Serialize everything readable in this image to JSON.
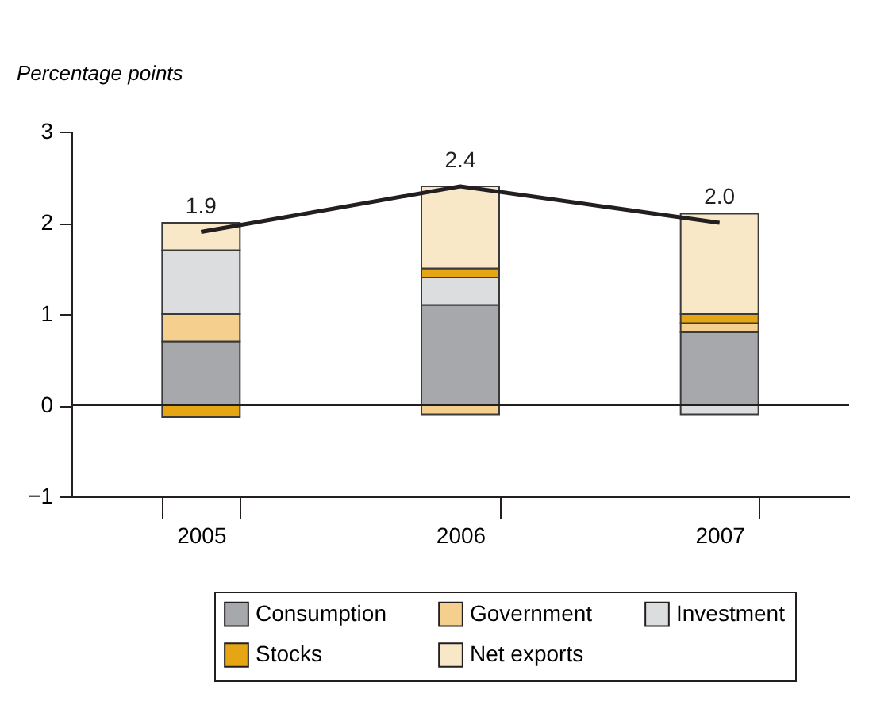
{
  "chart_data": {
    "type": "bar",
    "stacked": true,
    "ylabel": "Percentage points",
    "categories": [
      "2005",
      "2006",
      "2007"
    ],
    "series": [
      {
        "name": "Consumption",
        "color": "#a7a8ab",
        "values": [
          0.7,
          1.1,
          0.8
        ]
      },
      {
        "name": "Government",
        "color": "#f4cf8e",
        "values": [
          0.3,
          -0.1,
          0.1
        ]
      },
      {
        "name": "Investment",
        "color": "#dcdddf",
        "values": [
          0.7,
          0.3,
          -0.1
        ]
      },
      {
        "name": "Stocks",
        "color": "#e6a614",
        "values": [
          -0.13,
          0.1,
          0.1
        ]
      },
      {
        "name": "Net exports",
        "color": "#f9e8c8",
        "values": [
          0.3,
          0.9,
          1.1
        ]
      },
      {
        "type": "line",
        "color": "#231f20",
        "values": [
          1.9,
          2.4,
          2.0
        ],
        "value_labels": [
          "1.9",
          "2.4",
          "2.0"
        ]
      }
    ],
    "ylim": [
      -1,
      3
    ],
    "yticks": [
      {
        "value": -1,
        "label": "−1"
      },
      0,
      1,
      2,
      3
    ],
    "ref_lines": [
      {
        "axis": "y",
        "value": 0,
        "color": "#231f20"
      }
    ],
    "grid": false,
    "legend": "bottom"
  }
}
